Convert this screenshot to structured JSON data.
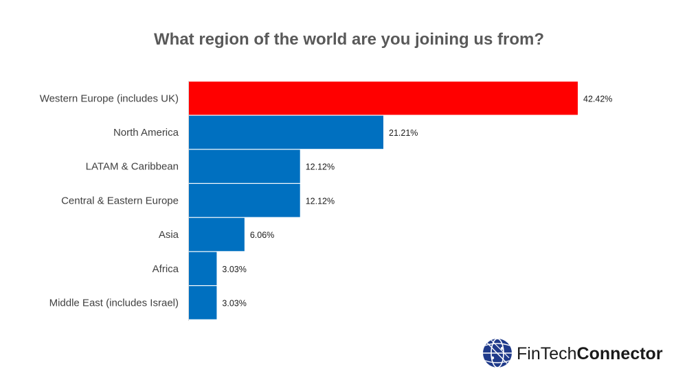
{
  "chart_data": {
    "type": "bar",
    "orientation": "horizontal",
    "title": "What region of the world are you joining us from?",
    "categories": [
      "Western Europe (includes UK)",
      "North America",
      "LATAM & Caribbean",
      "Central & Eastern Europe",
      "Asia",
      "Africa",
      "Middle East (includes Israel)"
    ],
    "values": [
      42.42,
      21.21,
      12.12,
      12.12,
      6.06,
      3.03,
      3.03
    ],
    "value_labels": [
      "42.42%",
      "21.21%",
      "12.12%",
      "12.12%",
      "6.06%",
      "3.03%",
      "3.03%"
    ],
    "xlim": [
      0,
      42.42
    ],
    "grid": false,
    "legend": "none",
    "colors": {
      "highlight": "#FF0000",
      "default": "#0070C0",
      "highlight_index": 0
    }
  },
  "logo": {
    "text_light": "FinTech",
    "text_bold": "Connector",
    "globe_color": "#1F3A8A"
  }
}
